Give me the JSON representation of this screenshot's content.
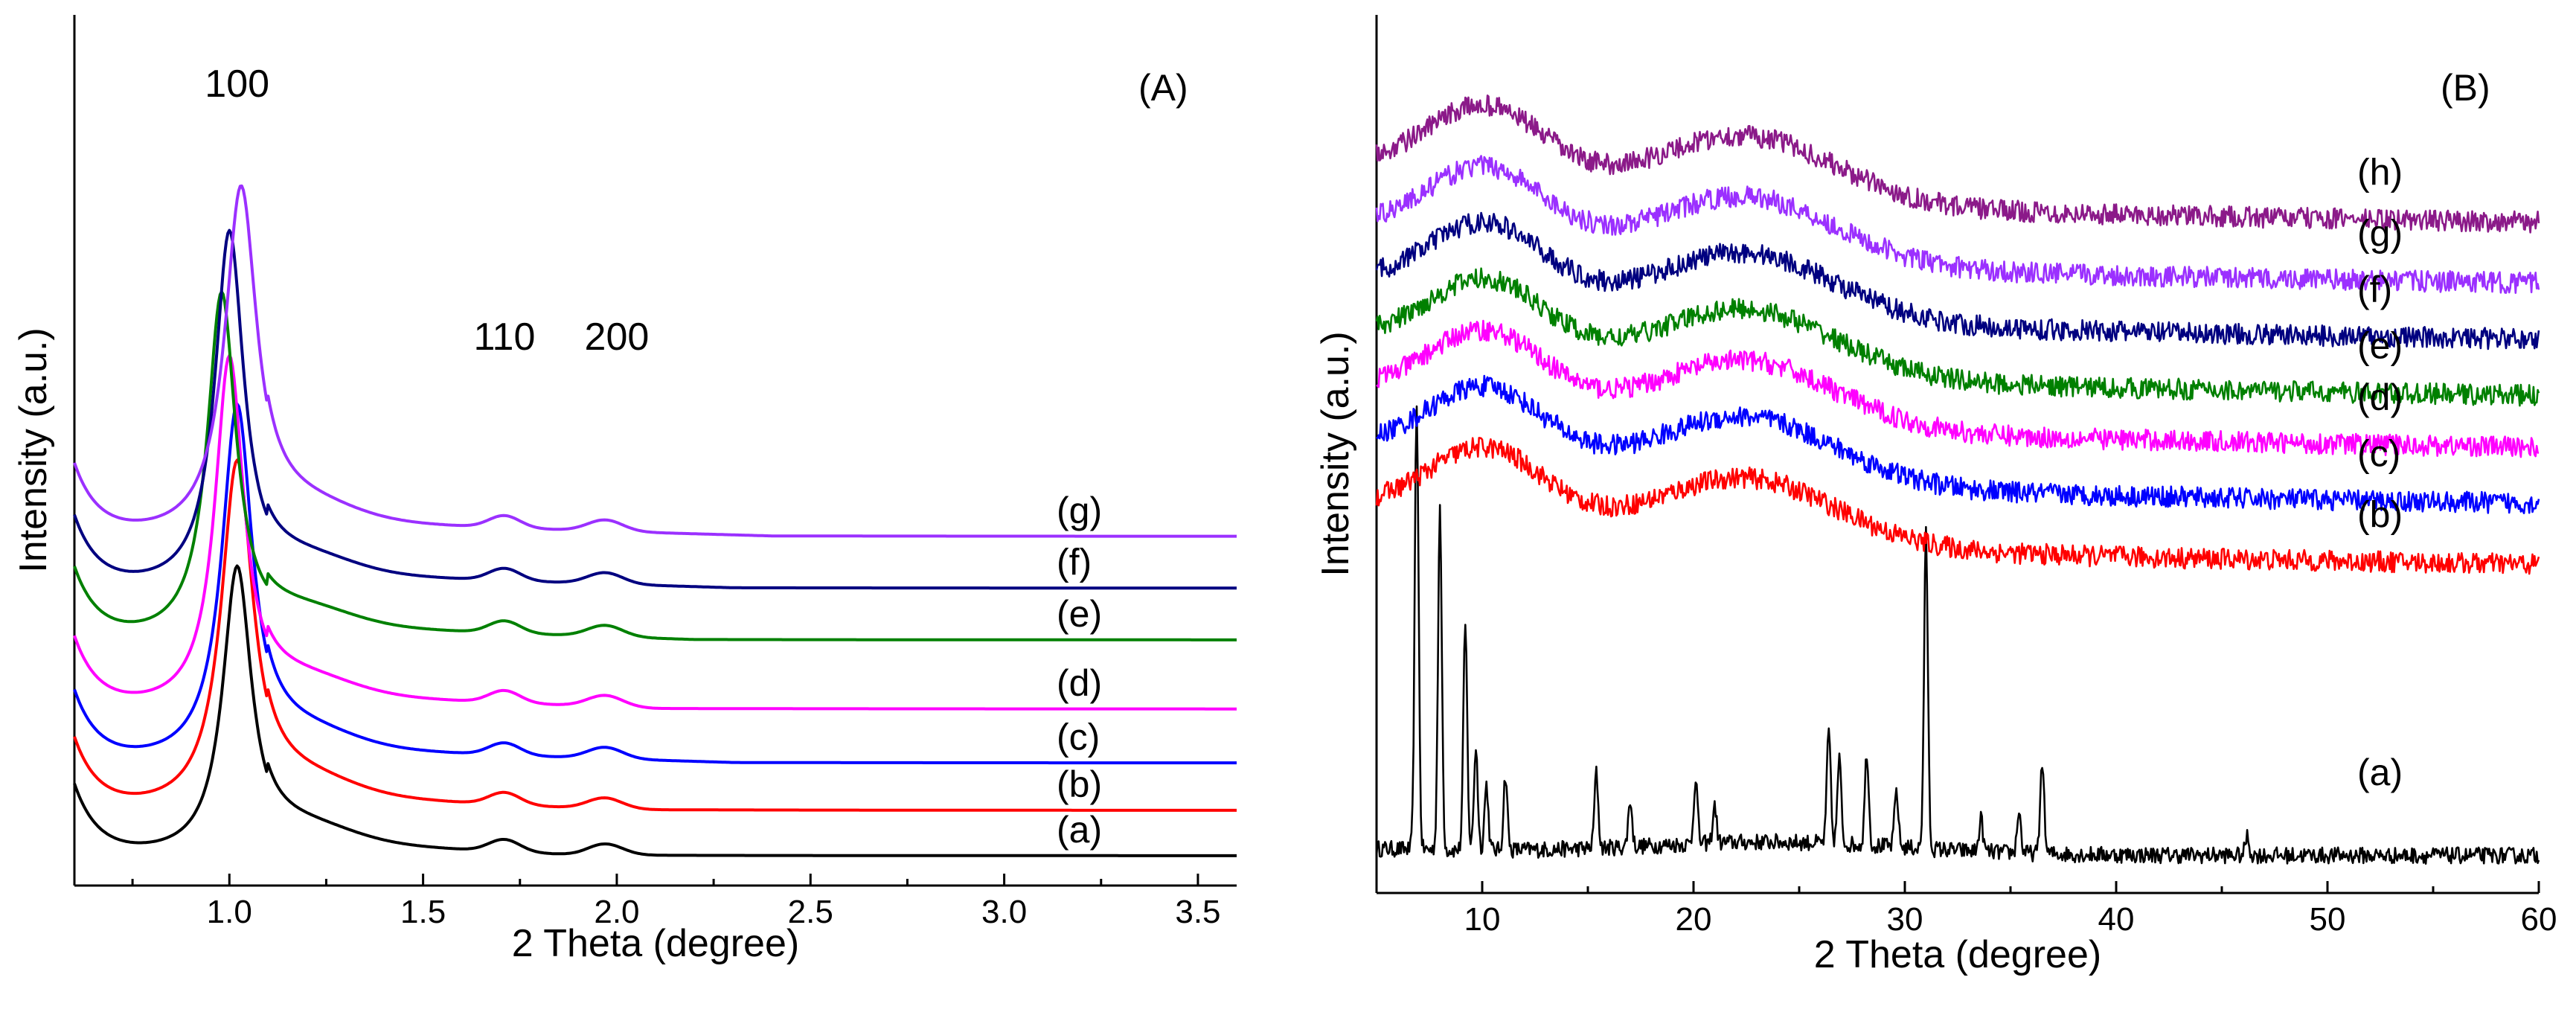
{
  "chart_data": [
    {
      "type": "line",
      "panel_label": "(A)",
      "xlabel": "2 Theta (degree)",
      "ylabel": "Intensity (a.u.)",
      "xlim": [
        0.6,
        3.6
      ],
      "xticks": [
        "1.0",
        "1.5",
        "2.0",
        "2.5",
        "3.0",
        "3.5"
      ],
      "xtick_values": [
        1.0,
        1.5,
        2.0,
        2.5,
        3.0,
        3.5
      ],
      "y_ticks_shown": false,
      "peak_annotations": [
        {
          "text": "100",
          "x": 1.02
        },
        {
          "text": "110",
          "x": 1.71
        },
        {
          "text": "200",
          "x": 2.0
        }
      ],
      "series": [
        {
          "name": "(a)",
          "color": "#000000",
          "offset": 0.0,
          "peak100": 1.02,
          "height100": 6.6,
          "width100": 0.045,
          "base_start": 1.9
        },
        {
          "name": "(b)",
          "color": "#ff0000",
          "offset": 1.05,
          "peak100": 1.02,
          "height100": 8.0,
          "width100": 0.05,
          "base_start": 2.0
        },
        {
          "name": "(c)",
          "color": "#0000ff",
          "offset": 2.15,
          "peak100": 1.02,
          "height100": 8.2,
          "width100": 0.048,
          "base_start": 2.3
        },
        {
          "name": "(d)",
          "color": "#ff00ff",
          "offset": 3.4,
          "peak100": 1.0,
          "height100": 8.1,
          "width100": 0.045,
          "base_start": 2.1
        },
        {
          "name": "(e)",
          "color": "#008000",
          "offset": 5.0,
          "peak100": 0.98,
          "height100": 8.0,
          "width100": 0.045,
          "base_start": 2.2
        },
        {
          "name": "(f)",
          "color": "#000080",
          "offset": 6.2,
          "peak100": 1.0,
          "height100": 8.2,
          "width100": 0.045,
          "base_start": 2.3
        },
        {
          "name": "(g)",
          "color": "#9b30ff",
          "offset": 7.4,
          "peak100": 1.03,
          "height100": 8.0,
          "width100": 0.05,
          "base_start": 2.4
        }
      ]
    },
    {
      "type": "line",
      "panel_label": "(B)",
      "xlabel": "2 Theta (degree)",
      "ylabel": "Intensity (a.u.)",
      "xlim": [
        5,
        60
      ],
      "xticks": [
        "10",
        "20",
        "30",
        "40",
        "50",
        "60"
      ],
      "xtick_values": [
        10,
        20,
        30,
        40,
        50,
        60
      ],
      "y_ticks_shown": false,
      "series": [
        {
          "name": "(a)",
          "color": "#000000",
          "offset": 0.0,
          "crystalline": true,
          "peaks": [
            [
              6.9,
              9.5
            ],
            [
              8.0,
              7.2
            ],
            [
              9.2,
              4.8
            ],
            [
              9.7,
              2.2
            ],
            [
              10.2,
              1.4
            ],
            [
              11.1,
              1.6
            ],
            [
              15.4,
              1.6
            ],
            [
              17.0,
              1.0
            ],
            [
              20.1,
              1.4
            ],
            [
              21.0,
              0.8
            ],
            [
              26.4,
              2.4
            ],
            [
              26.9,
              1.8
            ],
            [
              28.2,
              2.0
            ],
            [
              29.6,
              1.2
            ],
            [
              31.0,
              6.7
            ],
            [
              33.6,
              0.7
            ],
            [
              35.4,
              0.9
            ],
            [
              36.5,
              2.0
            ],
            [
              46.2,
              0.4
            ]
          ]
        },
        {
          "name": "(b)",
          "color": "#ff0000",
          "offset": 6.5,
          "crystalline": false
        },
        {
          "name": "(c)",
          "color": "#0000ff",
          "offset": 7.8,
          "crystalline": false
        },
        {
          "name": "(d)",
          "color": "#ff00ff",
          "offset": 9.0,
          "crystalline": false
        },
        {
          "name": "(e)",
          "color": "#008000",
          "offset": 10.1,
          "crystalline": false
        },
        {
          "name": "(f)",
          "color": "#000080",
          "offset": 11.3,
          "crystalline": false
        },
        {
          "name": "(g)",
          "color": "#9b30ff",
          "offset": 12.5,
          "crystalline": false
        },
        {
          "name": "(h)",
          "color": "#8b1a89",
          "offset": 13.8,
          "crystalline": false
        }
      ]
    }
  ]
}
